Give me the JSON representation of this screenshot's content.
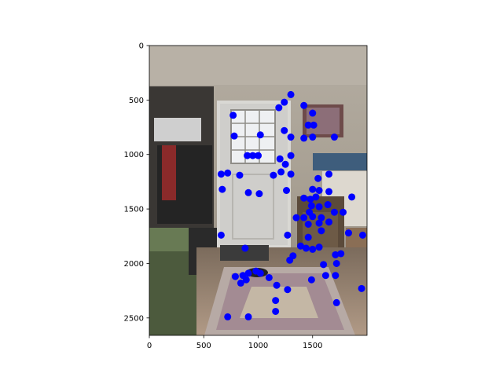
{
  "chart_data": {
    "type": "scatter",
    "title": "",
    "xlabel": "",
    "ylabel": "",
    "xlim": [
      0,
      2000
    ],
    "ylim": [
      2660,
      0
    ],
    "y_inverted": true,
    "grid": false,
    "background_image": "photo of a bedroom with a white door, window, bed and rug",
    "marker_color": "#0000ff",
    "x_ticks": [
      0,
      500,
      1000,
      1500
    ],
    "y_ticks": [
      0,
      500,
      1000,
      1500,
      2000,
      2500
    ],
    "x_tick_labels": [
      "0",
      "500",
      "1000",
      "1500"
    ],
    "y_tick_labels": [
      "0",
      "500",
      "1000",
      "1500",
      "2000",
      "2500"
    ],
    "points": [
      {
        "x": 1300,
        "y": 450
      },
      {
        "x": 1240,
        "y": 520
      },
      {
        "x": 1190,
        "y": 570
      },
      {
        "x": 1420,
        "y": 550
      },
      {
        "x": 770,
        "y": 640
      },
      {
        "x": 1500,
        "y": 620
      },
      {
        "x": 1460,
        "y": 730
      },
      {
        "x": 1510,
        "y": 730
      },
      {
        "x": 1240,
        "y": 780
      },
      {
        "x": 780,
        "y": 830
      },
      {
        "x": 1020,
        "y": 820
      },
      {
        "x": 1300,
        "y": 840
      },
      {
        "x": 1420,
        "y": 850
      },
      {
        "x": 1500,
        "y": 840
      },
      {
        "x": 1700,
        "y": 840
      },
      {
        "x": 900,
        "y": 1010
      },
      {
        "x": 950,
        "y": 1010
      },
      {
        "x": 1000,
        "y": 1010
      },
      {
        "x": 1200,
        "y": 1040
      },
      {
        "x": 1300,
        "y": 1010
      },
      {
        "x": 1250,
        "y": 1090
      },
      {
        "x": 1210,
        "y": 1160
      },
      {
        "x": 1300,
        "y": 1180
      },
      {
        "x": 1140,
        "y": 1190
      },
      {
        "x": 660,
        "y": 1180
      },
      {
        "x": 720,
        "y": 1170
      },
      {
        "x": 830,
        "y": 1190
      },
      {
        "x": 1550,
        "y": 1220
      },
      {
        "x": 1650,
        "y": 1180
      },
      {
        "x": 670,
        "y": 1320
      },
      {
        "x": 910,
        "y": 1350
      },
      {
        "x": 1010,
        "y": 1360
      },
      {
        "x": 1260,
        "y": 1330
      },
      {
        "x": 1500,
        "y": 1320
      },
      {
        "x": 1560,
        "y": 1330
      },
      {
        "x": 1650,
        "y": 1340
      },
      {
        "x": 1420,
        "y": 1400
      },
      {
        "x": 1480,
        "y": 1410
      },
      {
        "x": 1530,
        "y": 1390
      },
      {
        "x": 1860,
        "y": 1390
      },
      {
        "x": 1490,
        "y": 1470
      },
      {
        "x": 1560,
        "y": 1480
      },
      {
        "x": 1640,
        "y": 1460
      },
      {
        "x": 1470,
        "y": 1530
      },
      {
        "x": 1700,
        "y": 1530
      },
      {
        "x": 1780,
        "y": 1530
      },
      {
        "x": 1350,
        "y": 1580
      },
      {
        "x": 1420,
        "y": 1580
      },
      {
        "x": 1500,
        "y": 1570
      },
      {
        "x": 1580,
        "y": 1580
      },
      {
        "x": 1460,
        "y": 1640
      },
      {
        "x": 1560,
        "y": 1630
      },
      {
        "x": 1650,
        "y": 1620
      },
      {
        "x": 1580,
        "y": 1700
      },
      {
        "x": 1830,
        "y": 1720
      },
      {
        "x": 660,
        "y": 1740
      },
      {
        "x": 1270,
        "y": 1740
      },
      {
        "x": 1460,
        "y": 1760
      },
      {
        "x": 1960,
        "y": 1740
      },
      {
        "x": 1390,
        "y": 1840
      },
      {
        "x": 1440,
        "y": 1860
      },
      {
        "x": 1500,
        "y": 1870
      },
      {
        "x": 1560,
        "y": 1850
      },
      {
        "x": 880,
        "y": 1860
      },
      {
        "x": 1320,
        "y": 1930
      },
      {
        "x": 1290,
        "y": 1970
      },
      {
        "x": 1710,
        "y": 1920
      },
      {
        "x": 1760,
        "y": 1910
      },
      {
        "x": 1600,
        "y": 2010
      },
      {
        "x": 1720,
        "y": 2000
      },
      {
        "x": 790,
        "y": 2120
      },
      {
        "x": 860,
        "y": 2110
      },
      {
        "x": 910,
        "y": 2090
      },
      {
        "x": 980,
        "y": 2070
      },
      {
        "x": 1020,
        "y": 2090
      },
      {
        "x": 840,
        "y": 2180
      },
      {
        "x": 890,
        "y": 2150
      },
      {
        "x": 1100,
        "y": 2130
      },
      {
        "x": 1170,
        "y": 2200
      },
      {
        "x": 1270,
        "y": 2240
      },
      {
        "x": 1490,
        "y": 2150
      },
      {
        "x": 1620,
        "y": 2110
      },
      {
        "x": 1710,
        "y": 2110
      },
      {
        "x": 1950,
        "y": 2230
      },
      {
        "x": 1160,
        "y": 2340
      },
      {
        "x": 1160,
        "y": 2440
      },
      {
        "x": 1720,
        "y": 2360
      },
      {
        "x": 720,
        "y": 2490
      },
      {
        "x": 910,
        "y": 2490
      }
    ]
  }
}
